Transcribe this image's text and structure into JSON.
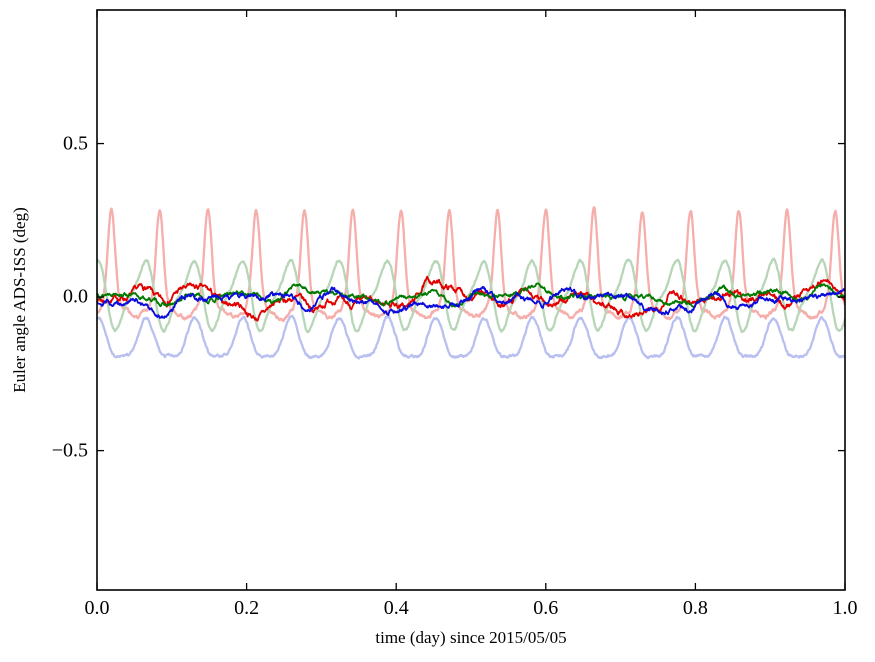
{
  "figure": {
    "background": "#ffffff",
    "xlabel": "time (day) since 2015/05/05",
    "ylabel": "Euler angle ADS-ISS (deg)"
  },
  "chart_data": {
    "type": "line",
    "title": "",
    "xlabel": "time (day) since 2015/05/05",
    "ylabel": "Euler angle ADS-ISS (deg)",
    "xlim": [
      0.0,
      1.0
    ],
    "ylim": [
      -0.954,
      0.935
    ],
    "grid": false,
    "legend": "none",
    "x_tick_labels": [
      {
        "v": 0.0,
        "label": "0.0"
      },
      {
        "v": 0.2,
        "label": "0.2"
      },
      {
        "v": 0.4,
        "label": "0.4"
      },
      {
        "v": 0.6,
        "label": "0.6"
      },
      {
        "v": 0.8,
        "label": "0.8"
      },
      {
        "v": 1.0,
        "label": "1.0"
      }
    ],
    "y_tick_labels": [
      {
        "v": 0.5,
        "label": "0.5"
      },
      {
        "v": 0.0,
        "label": "0.0"
      },
      {
        "v": -0.5,
        "label": "−0.5"
      }
    ],
    "cycles_per_day": 15.5,
    "period_day": 0.0645,
    "series": [
      {
        "name": "pale-red-orbital",
        "color": "#f5aeaa",
        "line_width": 2.3,
        "kind": "periodic-orbital",
        "base": -0.055,
        "seed": 3,
        "noise": 0.004,
        "smooth": 0.8,
        "components": [
          {
            "type": "bump",
            "amp": 0.09,
            "power": 1.2,
            "freq": 15.5,
            "phase": 0.95
          },
          {
            "type": "bump",
            "amp": 0.26,
            "power": 5,
            "freq": 15.5,
            "phase": 0.95
          },
          {
            "type": "sin",
            "amp": 0.012,
            "freq": 31.0,
            "phase": 0.1
          }
        ],
        "approx": {
          "baseline": -0.05,
          "peak": 0.29,
          "period_day": 0.0645
        }
      },
      {
        "name": "pale-green-orbital",
        "color": "#b7d6b7",
        "line_width": 2.3,
        "kind": "periodic-orbital",
        "base": 0.005,
        "seed": 5,
        "noise": 0.003,
        "smooth": 0.8,
        "components": [
          {
            "type": "sin",
            "amp": 0.1,
            "freq": 15.5,
            "phase": 0.3
          },
          {
            "type": "sin",
            "amp": 0.03,
            "freq": 31.0,
            "phase": 0.1
          }
        ],
        "approx": {
          "mean": 0.0,
          "peak": 0.13,
          "trough": -0.11,
          "period_day": 0.0645
        }
      },
      {
        "name": "pale-blue-orbital",
        "color": "#b9c0ef",
        "line_width": 2.3,
        "kind": "periodic-orbital",
        "base": -0.148,
        "seed": 9,
        "noise": 0.003,
        "smooth": 0.8,
        "components": [
          {
            "type": "sin",
            "amp": 0.062,
            "freq": 15.5,
            "phase": 0.23
          },
          {
            "type": "sin",
            "amp": 0.018,
            "freq": 31.0,
            "phase": 0.2
          }
        ],
        "approx": {
          "mean": -0.15,
          "peak": -0.08,
          "trough": -0.22,
          "period_day": 0.0645
        }
      },
      {
        "name": "red-euler-angle",
        "color": "#e00000",
        "line_width": 1.8,
        "kind": "noisy-residual",
        "base": -0.008,
        "seed": 7,
        "noise": 0.006,
        "smooth": 0.9,
        "components": [
          {
            "type": "sin",
            "amp": 0.022,
            "freq": 2.3,
            "phase": 0.13
          },
          {
            "type": "sin",
            "amp": 0.018,
            "freq": 5.9,
            "phase": 0.52
          },
          {
            "type": "sin",
            "amp": 0.014,
            "freq": 9.7,
            "phase": 0.81
          },
          {
            "type": "sin",
            "amp": 0.012,
            "freq": 15.5,
            "phase": 0.33
          },
          {
            "type": "sin",
            "amp": 0.007,
            "freq": 24.1,
            "phase": 0.66
          }
        ],
        "approx": {
          "mean": -0.01,
          "range": [
            -0.1,
            0.05
          ]
        }
      },
      {
        "name": "green-euler-angle",
        "color": "#007a00",
        "line_width": 1.8,
        "kind": "noisy-residual",
        "base": 0.004,
        "seed": 13,
        "noise": 0.004,
        "smooth": 0.9,
        "components": [
          {
            "type": "sin",
            "amp": 0.012,
            "freq": 3.1,
            "phase": 0.41
          },
          {
            "type": "sin",
            "amp": 0.01,
            "freq": 7.3,
            "phase": 0.07
          },
          {
            "type": "sin",
            "amp": 0.008,
            "freq": 12.7,
            "phase": 0.77
          },
          {
            "type": "sin",
            "amp": 0.007,
            "freq": 15.5,
            "phase": 0.21
          },
          {
            "type": "sin",
            "amp": 0.005,
            "freq": 21.3,
            "phase": 0.58
          }
        ],
        "approx": {
          "mean": 0.0,
          "range": [
            -0.04,
            0.05
          ]
        }
      },
      {
        "name": "blue-euler-angle",
        "color": "#0b0bdd",
        "line_width": 1.8,
        "kind": "noisy-residual",
        "base": -0.012,
        "seed": 29,
        "noise": 0.005,
        "smooth": 0.9,
        "components": [
          {
            "type": "sin",
            "amp": 0.016,
            "freq": 2.7,
            "phase": 0.62
          },
          {
            "type": "sin",
            "amp": 0.013,
            "freq": 6.1,
            "phase": 0.19
          },
          {
            "type": "sin",
            "amp": 0.011,
            "freq": 10.3,
            "phase": 0.88
          },
          {
            "type": "sin",
            "amp": 0.009,
            "freq": 15.5,
            "phase": 0.44
          },
          {
            "type": "sin",
            "amp": 0.006,
            "freq": 19.7,
            "phase": 0.05
          }
        ],
        "approx": {
          "mean": -0.015,
          "range": [
            -0.07,
            0.04
          ]
        }
      }
    ]
  }
}
